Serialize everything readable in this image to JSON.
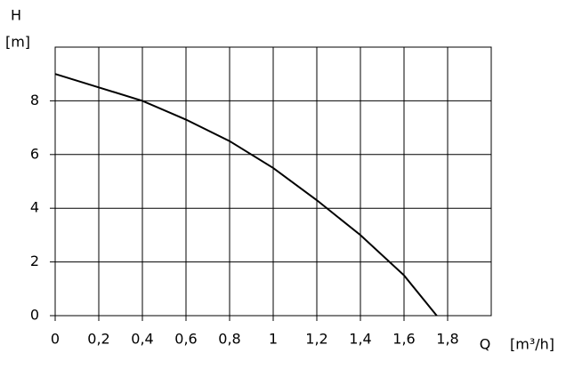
{
  "chart_data": {
    "type": "line",
    "y_label": "H",
    "y_unit": "[m]",
    "x_label": "Q",
    "x_unit": "[m³/h]",
    "x": [
      0,
      0.2,
      0.4,
      0.6,
      0.8,
      1.0,
      1.2,
      1.4,
      1.6,
      1.75
    ],
    "series": [
      {
        "color": "#000000",
        "values": [
          9.0,
          8.5,
          8.0,
          7.3,
          6.5,
          5.5,
          4.3,
          3.0,
          1.5,
          0
        ]
      }
    ],
    "xlim": [
      0,
      2
    ],
    "ylim": [
      0,
      10
    ],
    "xticks": [
      0,
      {
        "value": 0.2,
        "label": "0,2"
      },
      {
        "value": 0.4,
        "label": "0,4"
      },
      {
        "value": 0.6,
        "label": "0,6"
      },
      {
        "value": 0.8,
        "label": "0,8"
      },
      1,
      {
        "value": 1.2,
        "label": "1,2"
      },
      {
        "value": 1.4,
        "label": "1,4"
      },
      {
        "value": 1.6,
        "label": "1,6"
      },
      {
        "value": 1.8,
        "label": "1,8"
      }
    ],
    "yticks": [
      0,
      2,
      4,
      6,
      8
    ],
    "grid": true
  }
}
